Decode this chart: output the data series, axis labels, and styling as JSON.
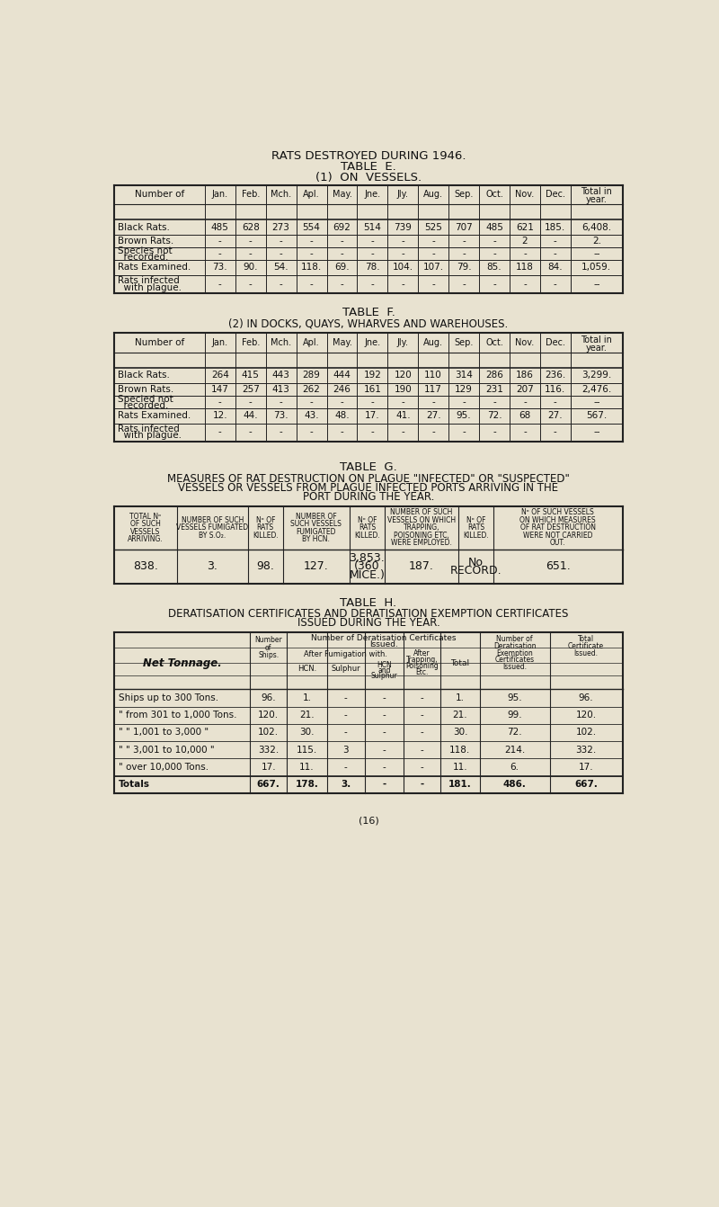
{
  "bg_color": "#e8e2d0",
  "text_color": "#1a1a1a",
  "title1": "RATS DESTROYED DURING 1946.",
  "title2": "TABLE  E.",
  "title3": "(1)  ON  VESSELS.",
  "months_header": [
    "Jan.",
    "Feb.",
    "Mch.",
    "Apl.",
    "May.",
    "Jne.",
    "Jly.",
    "Aug.",
    "Sep.",
    "Oct.",
    "Nov.",
    "Dec."
  ],
  "table_e_rows": [
    [
      "Black Rats.",
      "485",
      "628",
      "273",
      "554",
      "692",
      "514",
      "739",
      "525",
      "707",
      "485",
      "621",
      "185.",
      "6,408."
    ],
    [
      "Brown Rats.",
      "-",
      "-",
      "-",
      "-",
      "-",
      "-",
      "-",
      "-",
      "-",
      "-",
      "2",
      "-",
      "2."
    ],
    [
      "Species not\n  recorded.",
      "-",
      "-",
      "-",
      "-",
      "-",
      "-",
      "-",
      "-",
      "-",
      "-",
      "-",
      "-",
      "--"
    ],
    [
      "Rats Examined.",
      "73.",
      "90.",
      "54.",
      "118.",
      "69.",
      "78.",
      "104.",
      "107.",
      "79.",
      "85.",
      "118",
      "84.",
      "1,059."
    ],
    [
      "Rats infected\n  with plague.",
      "-",
      "-",
      "-",
      "-",
      "-",
      "-",
      "-",
      "-",
      "-",
      "-",
      "-",
      "-",
      "--"
    ]
  ],
  "title_f1": "TABLE  F.",
  "title_f2": "(2) IN DOCKS, QUAYS, WHARVES AND WAREHOUSES.",
  "table_f_rows": [
    [
      "Black Rats.",
      "264",
      "415",
      "443",
      "289",
      "444",
      "192",
      "120",
      "110",
      "314",
      "286",
      "186",
      "236.",
      "3,299."
    ],
    [
      "Brown Rats.",
      "147",
      "257",
      "413",
      "262",
      "246",
      "161",
      "190",
      "117",
      "129",
      "231",
      "207",
      "116.",
      "2,476."
    ],
    [
      "Specied not\n  recorded.",
      "-",
      "-",
      "-",
      "-",
      "-",
      "-",
      "-",
      "-",
      "-",
      "-",
      "-",
      "-",
      "--"
    ],
    [
      "Rats Examined.",
      "12.",
      "44.",
      "73.",
      "43.",
      "48.",
      "17.",
      "41.",
      "27.",
      "95.",
      "72.",
      "68",
      "27.",
      "567."
    ],
    [
      "Rats infected\n  with plague.",
      "-",
      "-",
      "-",
      "-",
      "-",
      "-",
      "-",
      "-",
      "-",
      "-",
      "-",
      "-",
      "--"
    ]
  ],
  "title_g": "TABLE  G.",
  "title_g2a": "MEASURES OF RAT DESTRUCTION ON PLAGUE \"INFECTED\" OR \"SUSPECTED\"",
  "title_g2b": "VESSELS OR VESSELS FROM PLAGUE INFECTED PORTS ARRIVING IN THE",
  "title_g2c": "PORT DURING THE YEAR.",
  "table_g_row": [
    "838.",
    "3.",
    "98.",
    "127.",
    "3,853.\n(360\nMICE.)",
    "187.",
    "No\nRECORD.",
    "651."
  ],
  "title_h": "TABLE  H.",
  "title_h2a": "DERATISATION CERTIFICATES AND DERATISATION EXEMPTION CERTIFICATES",
  "title_h2b": "ISSUED DURING THE YEAR.",
  "table_h_rows": [
    [
      "Ships up to 300 Tons.",
      "96.",
      "1.",
      "-",
      "-",
      "-",
      "1.",
      "95.",
      "96."
    ],
    [
      "\" from 301 to 1,000 Tons.",
      "120.",
      "21.",
      "-",
      "-",
      "-",
      "21.",
      "99.",
      "120."
    ],
    [
      "\" \" 1,001 to 3,000 \"",
      "102.",
      "30.",
      "-",
      "-",
      "-",
      "30.",
      "72.",
      "102."
    ],
    [
      "\" \" 3,001 to 10,000 \"",
      "332.",
      "115.",
      "3",
      "-",
      "-",
      "118.",
      "214.",
      "332."
    ],
    [
      "\" over 10,000 Tons.",
      "17.",
      "11.",
      "-",
      "-",
      "-",
      "11.",
      "6.",
      "17."
    ],
    [
      "Totals",
      "667.",
      "178.",
      "3.",
      "-",
      "-",
      "181.",
      "486.",
      "667."
    ]
  ],
  "footer": "(16)"
}
